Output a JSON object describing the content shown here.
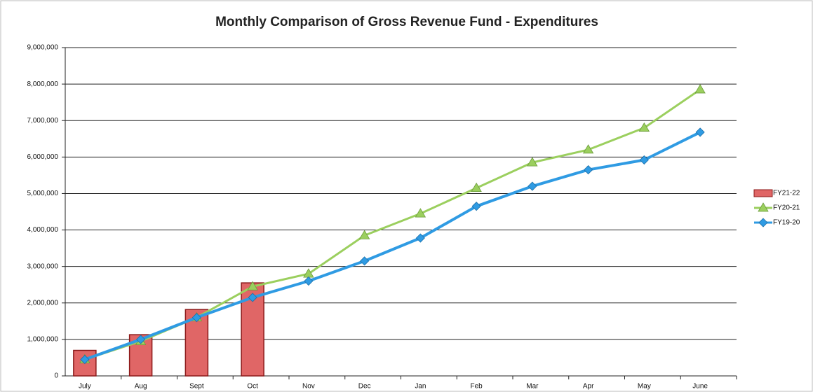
{
  "chart_data": {
    "type": "combo",
    "title": "Monthly Comparison of Gross Revenue Fund - Expenditures",
    "categories": [
      "July",
      "Aug",
      "Sept",
      "Oct",
      "Nov",
      "Dec",
      "Jan",
      "Feb",
      "Mar",
      "Apr",
      "May",
      "June"
    ],
    "series": [
      {
        "name": "FY21-22",
        "type": "bar",
        "color": "#e06666",
        "values": [
          700000,
          1130000,
          1820000,
          2550000,
          null,
          null,
          null,
          null,
          null,
          null,
          null,
          null
        ]
      },
      {
        "name": "FY20-21",
        "type": "line",
        "color": "#9bcf5e",
        "marker": "triangle",
        "values": [
          450000,
          950000,
          1600000,
          2450000,
          2800000,
          3850000,
          4450000,
          5150000,
          5850000,
          6200000,
          6800000,
          7850000
        ]
      },
      {
        "name": "FY19-20",
        "type": "line",
        "color": "#2f9be3",
        "marker": "diamond",
        "values": [
          450000,
          1000000,
          1600000,
          2150000,
          2600000,
          3150000,
          3780000,
          4650000,
          5200000,
          5650000,
          5920000,
          6680000
        ]
      }
    ],
    "ylim": [
      0,
      9000000
    ],
    "yticks": [
      0,
      {
        "value": 1000000,
        "label": "1,000,000"
      },
      {
        "value": 2000000,
        "label": "2,000,000"
      },
      {
        "value": 3000000,
        "label": "3,000,000"
      },
      {
        "value": 4000000,
        "label": "4,000,000"
      },
      {
        "value": 5000000,
        "label": "5,000,000"
      },
      {
        "value": 6000000,
        "label": "6,000,000"
      },
      {
        "value": 7000000,
        "label": "7,000,000"
      },
      {
        "value": 8000000,
        "label": "8,000,000"
      },
      {
        "value": 9000000,
        "label": "9,000,000"
      }
    ],
    "grid": true,
    "legend": "right"
  }
}
